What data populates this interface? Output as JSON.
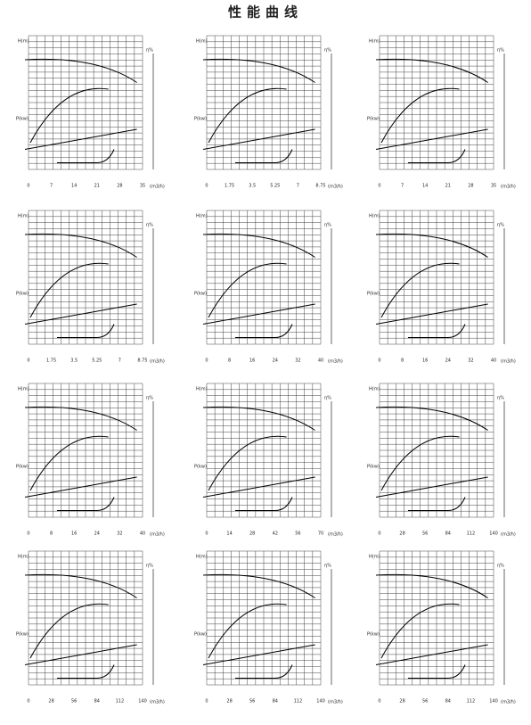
{
  "title": "性能曲线",
  "panels": [
    {
      "h_label": "H(m)",
      "p_label": "P(kw)",
      "eff_label": "η%",
      "q_label": "(m3/h)",
      "x_ticks": [
        0,
        7,
        14,
        21,
        28,
        35
      ]
    },
    {
      "h_label": "H(m)",
      "p_label": "P(kw)",
      "eff_label": "η%",
      "q_label": "(m3/h)",
      "x_ticks": [
        0,
        1.75,
        3.5,
        5.25,
        7,
        8.75
      ]
    },
    {
      "h_label": "H(m)",
      "p_label": "P(kw)",
      "eff_label": "η%",
      "q_label": "(m3/h)",
      "x_ticks": [
        0,
        7,
        14,
        21,
        28,
        35
      ]
    },
    {
      "h_label": "H(m)",
      "p_label": "P(kw)",
      "eff_label": "η%",
      "q_label": "(m3/h)",
      "x_ticks": [
        0,
        1.75,
        3.5,
        5.25,
        7,
        8.75
      ]
    },
    {
      "h_label": "H(m)",
      "p_label": "P(kw)",
      "eff_label": "η%",
      "q_label": "(m3/h)",
      "x_ticks": [
        0,
        8,
        16,
        24,
        32,
        40
      ]
    },
    {
      "h_label": "H(m)",
      "p_label": "P(kw)",
      "eff_label": "η%",
      "q_label": "(m3/h)",
      "x_ticks": [
        0,
        8,
        16,
        24,
        32,
        40
      ]
    },
    {
      "h_label": "H(m)",
      "p_label": "P(kw)",
      "eff_label": "η%",
      "q_label": "(m3/h)",
      "x_ticks": [
        0,
        8,
        16,
        24,
        32,
        40
      ]
    },
    {
      "h_label": "H(m)",
      "p_label": "P(kw)",
      "eff_label": "η%",
      "q_label": "(m3/h)",
      "x_ticks": [
        0,
        14,
        28,
        42,
        56,
        70
      ]
    },
    {
      "h_label": "H(m)",
      "p_label": "P(kw)",
      "eff_label": "η%",
      "q_label": "(m3/h)",
      "x_ticks": [
        0,
        28,
        56,
        84,
        112,
        140
      ]
    },
    {
      "h_label": "H(m)",
      "p_label": "P(kw)",
      "eff_label": "η%",
      "q_label": "(m3/h)",
      "x_ticks": [
        0,
        28,
        56,
        84,
        112,
        140
      ]
    },
    {
      "h_label": "H(m)",
      "p_label": "P(kw)",
      "eff_label": "η%",
      "q_label": "(m3/h)",
      "x_ticks": [
        0,
        28,
        56,
        84,
        112,
        140
      ]
    },
    {
      "h_label": "H(m)",
      "p_label": "P(kw)",
      "eff_label": "η%",
      "q_label": "(m3/h)",
      "x_ticks": [
        0,
        28,
        56,
        84,
        112,
        140
      ]
    }
  ]
}
